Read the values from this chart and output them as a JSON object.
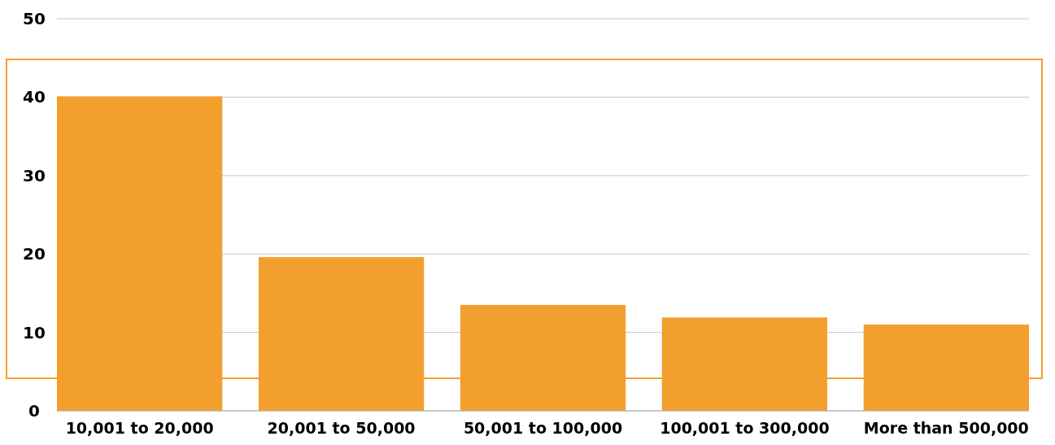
{
  "chart_data": {
    "type": "bar",
    "categories": [
      "10,001 to 20,000",
      "20,001 to 50,000",
      "50,001 to 100,000",
      "100,001 to 300,000",
      "More than 500,000"
    ],
    "values": [
      40.1,
      19.6,
      13.5,
      11.9,
      11.0
    ],
    "color": "#f39f2e",
    "ylim": [
      0,
      50
    ],
    "yticks": [
      0,
      10,
      20,
      30,
      40,
      50
    ],
    "grid": "y"
  }
}
